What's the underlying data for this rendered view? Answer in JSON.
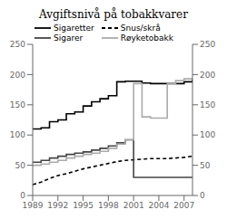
{
  "chart_data": {
    "type": "line",
    "title": "Avgiftsnivå på tobakkvarer",
    "x": [
      1989,
      1990,
      1991,
      1992,
      1993,
      1994,
      1995,
      1996,
      1997,
      1998,
      1999,
      2000,
      2001,
      2002,
      2003,
      2004,
      2005,
      2006,
      2007,
      2008
    ],
    "series": [
      {
        "name": "Sigaretter",
        "color": "#000000",
        "type": "step",
        "line_style": "solid",
        "values": [
          110,
          112,
          122,
          125,
          135,
          138,
          148,
          155,
          160,
          165,
          188,
          189,
          189,
          186,
          185,
          185,
          185,
          185,
          188,
          193
        ]
      },
      {
        "name": "Snus/skrå",
        "color": "#000000",
        "type": "line",
        "line_style": "dashed",
        "values": [
          18,
          22,
          28,
          33,
          36,
          40,
          44,
          47,
          50,
          53,
          56,
          58,
          59,
          60,
          61,
          61,
          61,
          62,
          63,
          65
        ]
      },
      {
        "name": "Sigarer",
        "color": "#444444",
        "type": "step",
        "line_style": "solid",
        "values": [
          55,
          58,
          62,
          65,
          68,
          70,
          72,
          75,
          78,
          82,
          87,
          92,
          30,
          30,
          30,
          30,
          30,
          30,
          30,
          30
        ]
      },
      {
        "name": "Røyketobakk",
        "color": "#aaaaaa",
        "type": "step",
        "line_style": "solid",
        "values": [
          50,
          52,
          55,
          58,
          62,
          65,
          68,
          70,
          73,
          78,
          85,
          92,
          185,
          130,
          128,
          128,
          185,
          190,
          193,
          195
        ]
      }
    ],
    "xlim": [
      1989,
      2008
    ],
    "xticks": [
      1989,
      1992,
      1995,
      1998,
      2001,
      2004,
      2007
    ],
    "ylim": [
      0,
      250
    ],
    "yticks": [
      0,
      50,
      100,
      150,
      200,
      250
    ],
    "y2lim": [
      0,
      250
    ],
    "y2ticks": [
      0,
      50,
      100,
      150,
      200,
      250
    ],
    "grid": false,
    "legend": "upper left"
  }
}
